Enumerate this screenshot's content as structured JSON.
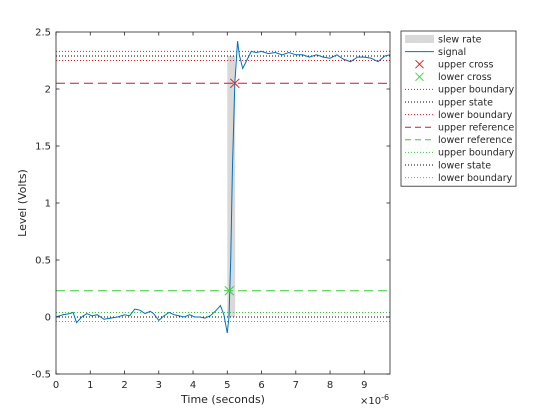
{
  "chart_data": {
    "type": "line",
    "xlabel": "Time (seconds)",
    "ylabel": "Level (Volts)",
    "x_exponent_label": "×10",
    "x_exponent_power": "-6",
    "xlim": [
      0,
      9.75
    ],
    "ylim": [
      -0.5,
      2.5
    ],
    "x_ticks": [
      0,
      1,
      2,
      3,
      4,
      5,
      6,
      7,
      8,
      9
    ],
    "y_ticks": [
      -0.5,
      0,
      0.5,
      1,
      1.5,
      2,
      2.5
    ],
    "x_tick_labels": [
      "0",
      "1",
      "2",
      "3",
      "4",
      "5",
      "6",
      "7",
      "8",
      "9"
    ],
    "y_tick_labels": [
      "-0.5",
      "0",
      "0.5",
      "1",
      "1.5",
      "2",
      "2.5"
    ],
    "grid": false,
    "legend_position": "top-right",
    "slew_rate_region": [
      5.0,
      5.23
    ],
    "signal": {
      "name": "signal",
      "color": "#0072bd",
      "x": [
        0,
        0.2,
        0.4,
        0.5,
        0.6,
        0.75,
        0.9,
        1.05,
        1.2,
        1.4,
        1.6,
        1.8,
        2.0,
        2.15,
        2.3,
        2.45,
        2.6,
        2.75,
        2.85,
        3.0,
        3.15,
        3.3,
        3.45,
        3.6,
        3.75,
        3.9,
        4.05,
        4.2,
        4.35,
        4.5,
        4.65,
        4.8,
        4.9,
        5.0,
        5.05,
        5.1,
        5.15,
        5.22,
        5.3,
        5.35,
        5.45,
        5.55,
        5.7,
        5.85,
        6.0,
        6.2,
        6.4,
        6.6,
        6.8,
        7.0,
        7.2,
        7.4,
        7.6,
        7.8,
        8.0,
        8.2,
        8.4,
        8.6,
        8.8,
        9.0,
        9.2,
        9.4,
        9.6,
        9.75
      ],
      "y": [
        0.0,
        0.02,
        0.03,
        0.04,
        -0.05,
        0.0,
        0.03,
        0.01,
        0.02,
        -0.02,
        -0.01,
        0.0,
        0.02,
        0.01,
        0.07,
        0.06,
        0.03,
        0.05,
        0.03,
        -0.03,
        0.01,
        0.04,
        0.02,
        0.01,
        0.0,
        0.02,
        0.0,
        0.0,
        -0.01,
        0.01,
        0.05,
        0.1,
        0.02,
        -0.14,
        0.0,
        0.5,
        1.3,
        2.05,
        2.42,
        2.3,
        2.18,
        2.24,
        2.33,
        2.32,
        2.33,
        2.31,
        2.32,
        2.3,
        2.32,
        2.3,
        2.3,
        2.28,
        2.3,
        2.28,
        2.27,
        2.3,
        2.26,
        2.24,
        2.28,
        2.28,
        2.27,
        2.24,
        2.29,
        2.3
      ]
    },
    "upper_cross": {
      "x": 5.22,
      "y": 2.05
    },
    "lower_cross": {
      "x": 5.06,
      "y": 0.23
    },
    "upper_state_line": {
      "upper_boundary": 2.33,
      "state": 2.29,
      "lower_boundary": 2.25
    },
    "lower_state_line": {
      "upper_boundary": 0.04,
      "state": 0.0,
      "lower_boundary": -0.04
    },
    "upper_reference": 2.05,
    "lower_reference": 0.23,
    "legend": [
      {
        "label": "slew rate",
        "kind": "patch",
        "color": "#d9d9d9"
      },
      {
        "label": "signal",
        "kind": "line",
        "color": "#0072bd"
      },
      {
        "label": "upper cross",
        "kind": "marker",
        "color": "#e31a1c"
      },
      {
        "label": "lower cross",
        "kind": "marker",
        "color": "#33dd33"
      },
      {
        "label": "upper boundary",
        "kind": "dotted",
        "color": "#e31a1c"
      },
      {
        "label": "upper state",
        "kind": "dotted",
        "color": "#000000"
      },
      {
        "label": "lower boundary",
        "kind": "dotted",
        "color": "#e31a1c"
      },
      {
        "label": "upper reference",
        "kind": "dashed",
        "color": "#c81e2b"
      },
      {
        "label": "lower reference",
        "kind": "dashed",
        "color": "#33cc33"
      },
      {
        "label": "upper boundary",
        "kind": "dotted",
        "color": "#33cc33"
      },
      {
        "label": "lower state",
        "kind": "dotted",
        "color": "#000000"
      },
      {
        "label": "lower boundary",
        "kind": "dotted",
        "color": "#33cc33"
      }
    ],
    "colors": {
      "axis": "#262626",
      "slew": "#d9d9d9",
      "upper_ref": "#c81e2b",
      "lower_ref": "#33cc33",
      "upper_bound": "#e31a1c",
      "lower_bound": "#33cc33",
      "state": "#000000"
    }
  }
}
